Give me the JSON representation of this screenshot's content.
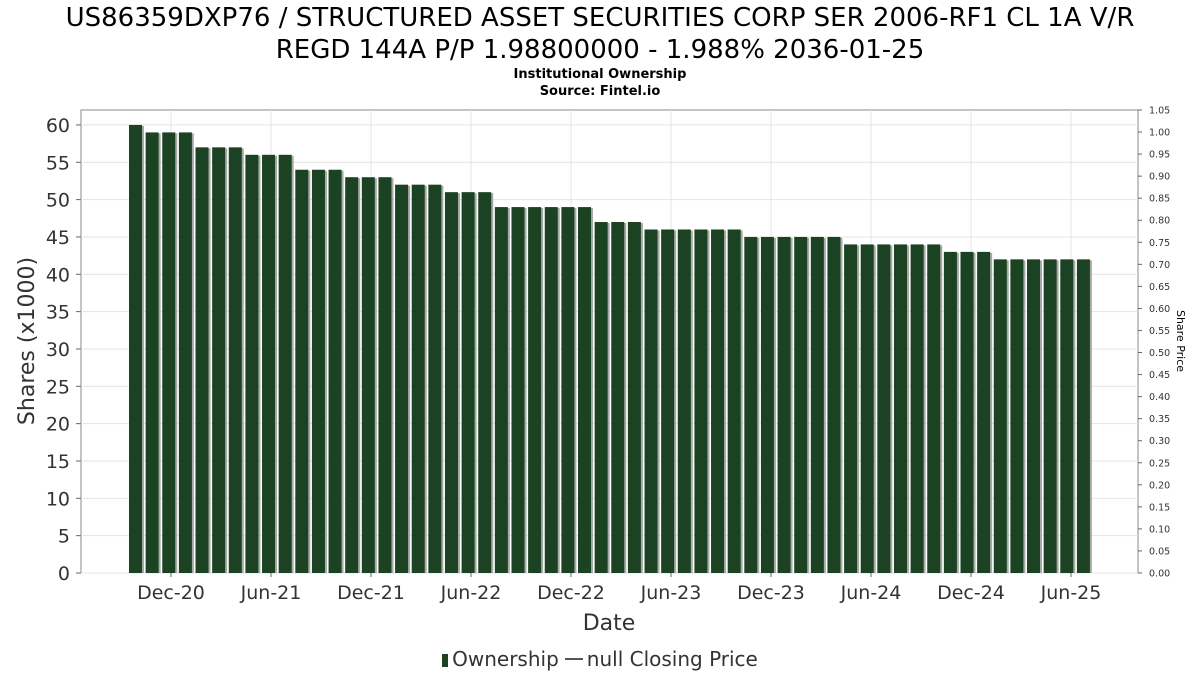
{
  "header": {
    "title_line1": "US86359DXP76 / STRUCTURED ASSET SECURITIES CORP SER 2006-RF1 CL 1A V/R",
    "title_line2": "REGD 144A P/P 1.98800000 - 1.988% 2036-01-25",
    "subtitle_line1": "Institutional Ownership",
    "subtitle_line2": "Source: Fintel.io"
  },
  "legend": {
    "ownership_label": "Ownership",
    "price_label": "null Closing Price"
  },
  "colors": {
    "bar": "#1b4323",
    "bar_shadow": "#a6aaa5",
    "grid": "#e4e4e4",
    "axis_text": "#333333"
  },
  "chart_data": {
    "type": "bar",
    "title": "US86359DXP76 / STRUCTURED ASSET SECURITIES CORP SER 2006-RF1 CL 1A V/R REGD 144A P/P 1.98800000 - 1.988% 2036-01-25",
    "subtitle": "Institutional Ownership",
    "xlabel": "Date",
    "ylabel": "Shares (x1000)",
    "y2label": "Share Price",
    "ylim": [
      0,
      62
    ],
    "y2lim": [
      0,
      1.05
    ],
    "yticks": [
      0,
      5,
      10,
      15,
      20,
      25,
      30,
      35,
      40,
      45,
      50,
      55,
      60
    ],
    "y2ticks": [
      "0.00",
      "0.05",
      "0.10",
      "0.15",
      "0.20",
      "0.25",
      "0.30",
      "0.35",
      "0.40",
      "0.45",
      "0.50",
      "0.55",
      "0.60",
      "0.65",
      "0.70",
      "0.75",
      "0.80",
      "0.85",
      "0.90",
      "0.95",
      "1.00",
      "1.05"
    ],
    "xticks": [
      "Dec-20",
      "Jun-21",
      "Dec-21",
      "Jun-22",
      "Dec-22",
      "Jun-23",
      "Dec-23",
      "Jun-24",
      "Dec-24",
      "Jun-25"
    ],
    "grid": true,
    "legend_position": "bottom",
    "series": [
      {
        "name": "Ownership",
        "values": [
          60,
          59,
          59,
          59,
          57,
          57,
          57,
          56,
          56,
          56,
          54,
          54,
          54,
          53,
          53,
          53,
          52,
          52,
          52,
          51,
          51,
          51,
          49,
          49,
          49,
          49,
          49,
          49,
          47,
          47,
          47,
          46,
          46,
          46,
          46,
          46,
          46,
          45,
          45,
          45,
          45,
          45,
          45,
          44,
          44,
          44,
          44,
          44,
          44,
          43,
          43,
          43,
          42,
          42,
          42,
          42,
          42,
          42
        ]
      },
      {
        "name": "null Closing Price",
        "values": []
      }
    ]
  }
}
